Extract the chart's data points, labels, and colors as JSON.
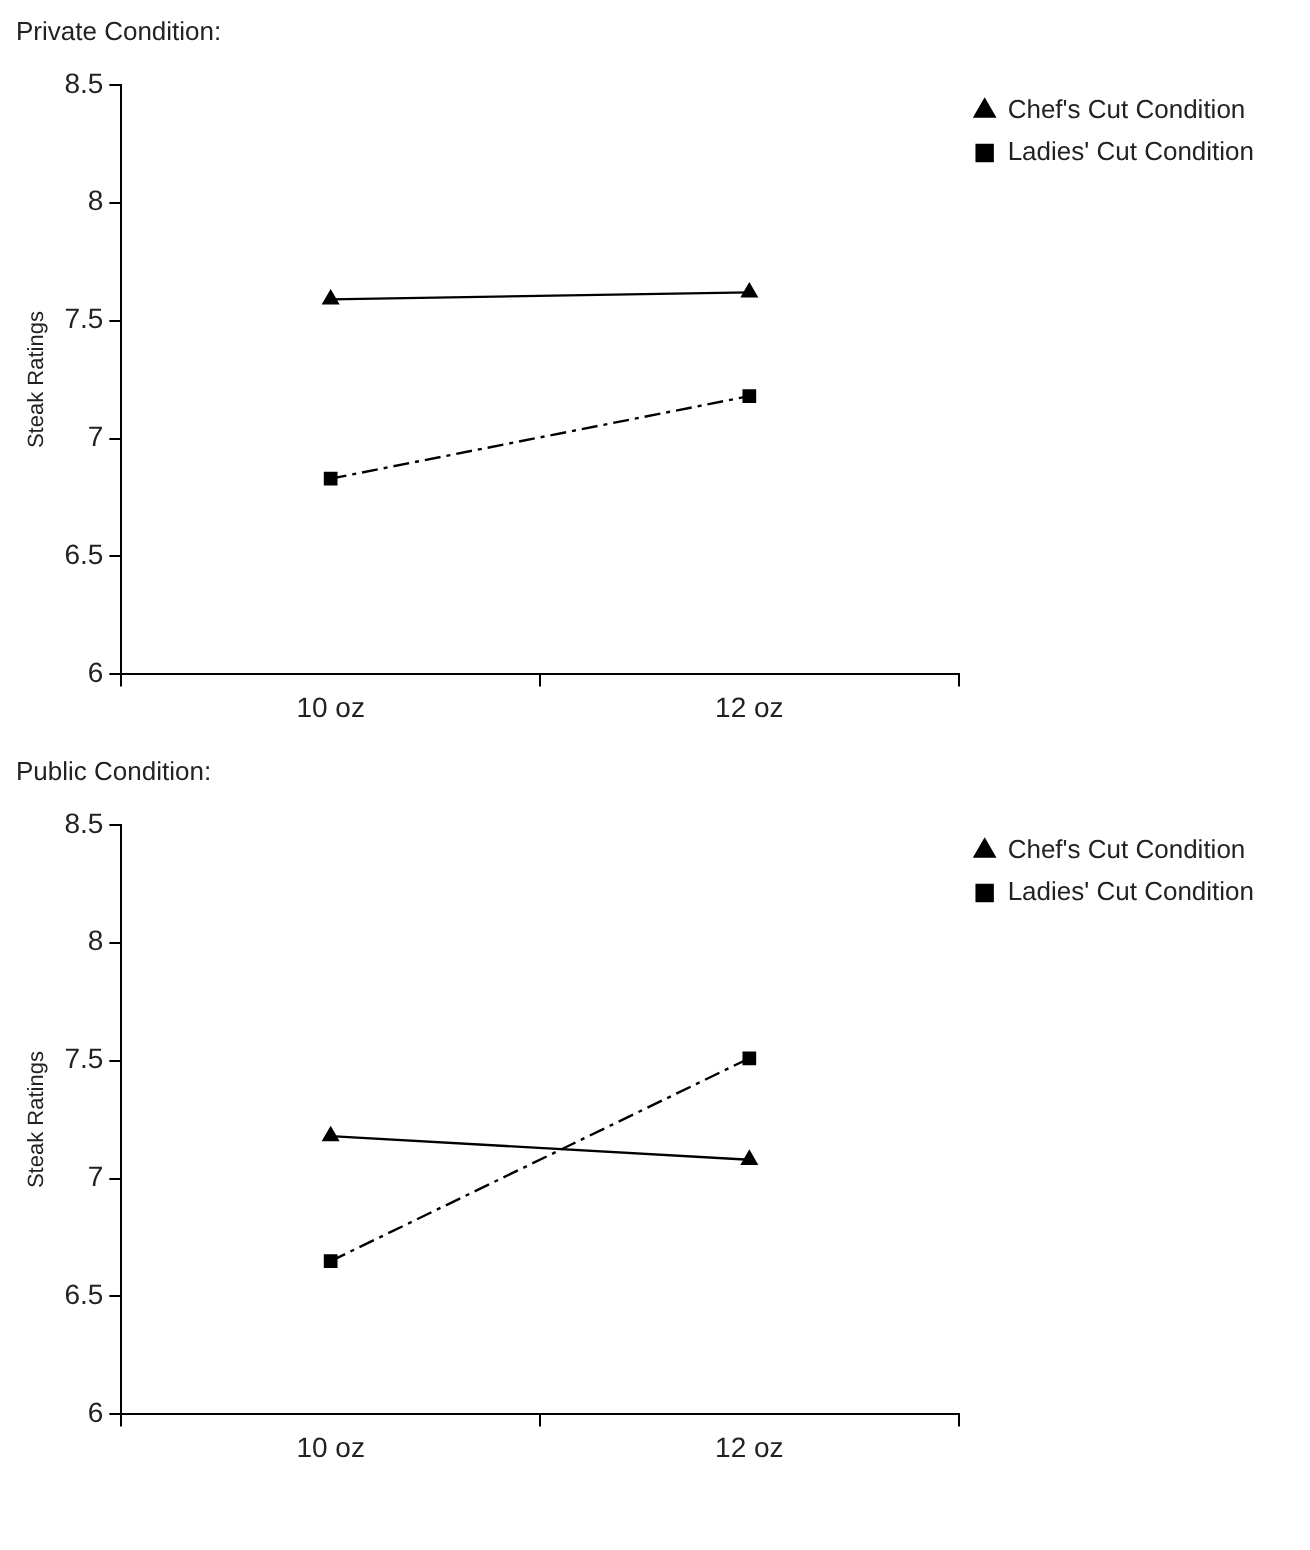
{
  "chart_data": [
    {
      "type": "line",
      "title": "Private Condition:",
      "ylabel": "Steak Ratings",
      "categories": [
        "10 oz",
        "12 oz"
      ],
      "series": [
        {
          "name": "Chef's Cut Condition",
          "color": "#000000",
          "values": [
            7.59,
            7.62
          ],
          "marker": "triangle",
          "line_style": "solid"
        },
        {
          "name": "Ladies' Cut Condition",
          "color": "#000000",
          "values": [
            6.83,
            7.18
          ],
          "marker": "square",
          "line_style": "dashed"
        }
      ],
      "ylim": [
        6,
        8.5
      ],
      "yticks": [
        6,
        6.5,
        7,
        7.5,
        8,
        8.5
      ],
      "grid": false,
      "legend": "right"
    },
    {
      "type": "line",
      "title": "Public Condition:",
      "ylabel": "Steak Ratings",
      "categories": [
        "10 oz",
        "12 oz"
      ],
      "series": [
        {
          "name": "Chef's Cut Condition",
          "color": "#000000",
          "values": [
            7.18,
            7.08
          ],
          "marker": "triangle",
          "line_style": "solid"
        },
        {
          "name": "Ladies' Cut Condition",
          "color": "#000000",
          "values": [
            6.65,
            7.51
          ],
          "marker": "square",
          "line_style": "dashed"
        }
      ],
      "ylim": [
        6,
        8.5
      ],
      "yticks": [
        6,
        6.5,
        7,
        7.5,
        8,
        8.5
      ],
      "grid": false,
      "legend": "right"
    }
  ]
}
